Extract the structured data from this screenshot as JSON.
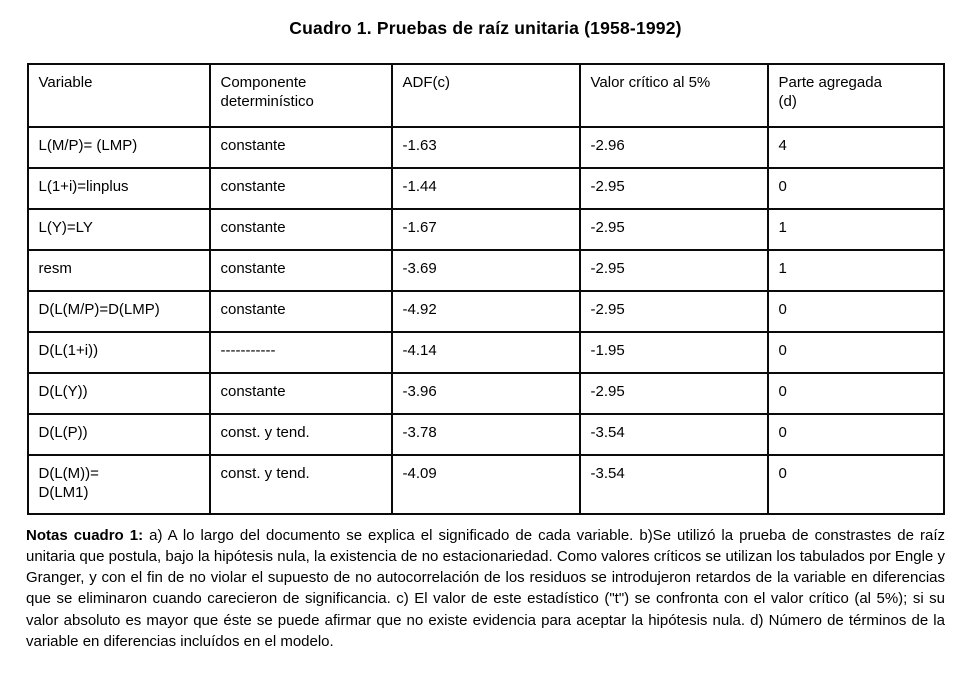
{
  "title": "Cuadro 1. Pruebas de raíz unitaria (1958-1992)",
  "table": {
    "headers": [
      "Variable",
      "Componente\ndeterminístico",
      "ADF(c)",
      "Valor crítico al 5%",
      "Parte agregada\n(d)"
    ],
    "rows": [
      {
        "cells": [
          "L(M/P)= (LMP)",
          "constante",
          "-1.63",
          "-2.96",
          "4"
        ]
      },
      {
        "cells": [
          "L(1+i)=linplus",
          "constante",
          "-1.44",
          "-2.95",
          "0"
        ]
      },
      {
        "cells": [
          "L(Y)=LY",
          "constante",
          "-1.67",
          "-2.95",
          "1"
        ]
      },
      {
        "cells": [
          "resm",
          "constante",
          "-3.69",
          "-2.95",
          "1"
        ]
      },
      {
        "cells": [
          "D(L(M/P)=D(LMP)",
          "constante",
          "-4.92",
          "-2.95",
          "0"
        ]
      },
      {
        "cells": [
          "D(L(1+i))",
          "-----------",
          "-4.14",
          "-1.95",
          "0"
        ]
      },
      {
        "cells": [
          "D(L(Y))",
          "constante",
          "-3.96",
          "-2.95",
          "0"
        ]
      },
      {
        "cells": [
          "D(L(P))",
          "const. y tend.",
          "-3.78",
          "-3.54",
          "0"
        ]
      },
      {
        "cells": [
          "D(L(M))=\nD(LM1)",
          "const. y tend.",
          "-4.09",
          "-3.54",
          "0"
        ]
      }
    ]
  },
  "notes": {
    "label": "Notas cuadro 1:",
    "text": " a) A lo largo del documento se explica el significado de cada variable. b)Se utilizó la prueba de constrastes de raíz unitaria que postula, bajo la hipótesis nula, la existencia de no estacionariedad. Como valores críticos se utilizan los tabulados por Engle y Granger, y con el fin de no violar el supuesto de no autocorrelación de los residuos se introdujeron retardos de la variable en diferencias que se eliminaron cuando carecieron de significancia. c) El valor de este estadístico (\"t\") se confronta con el valor crítico (al 5%); si su valor absoluto es mayor que éste se puede afirmar que no existe evidencia para aceptar la hipótesis nula. d) Número de términos de la variable en diferencias incluídos en el modelo."
  }
}
